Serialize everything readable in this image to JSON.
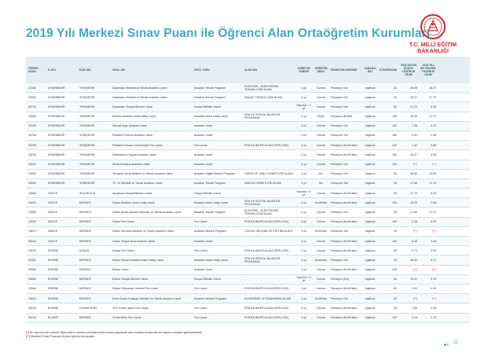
{
  "page_title": "2019 Yılı Merkezi Sınav Puanı ile Öğrenci Alan Ortaöğretim Kurumları",
  "logo": {
    "line1": "T.C. MİLLİ EĞİTİM",
    "line2": "BAKANLIĞI",
    "color": "#d6262b"
  },
  "accent_color": "#3fa9c9",
  "table": {
    "headers": {
      "kod": "TERCİH KODU",
      "il": "İL ADI",
      "ilce": "İLÇE ADI",
      "okul": "OKUL ADI",
      "tur": "OKUL TÜRÜ",
      "alan": "ALAN ADI",
      "sure": "ÖĞRETİM SÜRESİ",
      "sekil": "ÖĞRETİM ŞEKLİ",
      "pans": "PANSİYON DURUMU",
      "dil": "YABANCI DİLİ",
      "kont": "KONTENJANI",
      "y1": "2018 YILI EN DÜŞÜK YÜZDELİK DİLİM",
      "y2": "2018 YILI EN YÜKSEK YÜZDELİK DİLİM"
    },
    "rows": [
      {
        "kod": "23080",
        "il": "DİYARBAKIR",
        "ilce": "YENİŞEHİR",
        "okul": "Diyarbakır Mesleki ve Teknik Anadolu Lisesi",
        "tur": "Anadolu Teknik Programı",
        "alan": "ELEKTRİK - ELEKTRONİK TEKNOLOJİSİ ALANI",
        "sure": "4 yıl",
        "sekil": "Karma",
        "pans": "Pansiyon Yok",
        "dil": "İngilizce",
        "kont": "30",
        "y1": "48.65",
        "y2": "26.27"
      },
      {
        "kod": "23081",
        "il": "DİYARBAKIR",
        "ilce": "YENİŞEHİR",
        "okul": "Diyarbakır Mesleki ve Teknik Anadolu Lisesi",
        "tur": "Anadolu Teknik Programı",
        "alan": "İNŞAAT TEKNOLOJİSİ ALANI",
        "sure": "4 yıl",
        "sekil": "Karma",
        "pans": "Pansiyon Yok",
        "dil": "İngilizce",
        "kont": "30",
        "y1": "48.27",
        "y2": "27.73"
      },
      {
        "kod": "28731",
        "il": "DİYARBAKIR",
        "ilce": "YENİŞEHİR",
        "okul": "Diyarbakır Sosyal Bilimler Lisesi",
        "tur": "Sosyal Bilimler Lisesi",
        "alan": "-",
        "sure": "Hazırlık + 4 yıl",
        "sekil": "Karma",
        "pans": "Pansiyon Yok",
        "dil": "İngilizce",
        "kont": "30",
        "y1": "21.23",
        "y2": "8.39"
      },
      {
        "kod": "24863",
        "il": "DİYARBAKIR",
        "ilce": "YENİŞEHİR",
        "okul": "Merkez Anadolu İmam Hatip Lisesi",
        "tur": "Anadolu İmam Hatip Lisesi",
        "alan": "FEN VE SOSYAL BİLİMLER PROGRAMI",
        "sure": "4 yıl",
        "sekil": "Erkek",
        "pans": "Pansiyon (Erkek)",
        "dil": "İngilizce",
        "kont": "120",
        "y1": "48.35",
        "y2": "11.77"
      },
      {
        "kod": "28189",
        "il": "DİYARBAKIR",
        "ilce": "YENİŞEHİR",
        "okul": "Nevzat Ayaz Anadolu Lisesi",
        "tur": "Anadolu Lisesi",
        "alan": "-",
        "sure": "4 yıl",
        "sekil": "Karma",
        "pans": "Pansiyon Yok",
        "dil": "İngilizce",
        "kont": "180",
        "y1": "7.96",
        "y2": "3.78"
      },
      {
        "kod": "26764",
        "il": "DİYARBAKIR",
        "ilce": "YENİŞEHİR",
        "okul": "Rekabet Kurumu Anadolu Lisesi",
        "tur": "Anadolu Lisesi",
        "alan": "-",
        "sure": "4 yıl",
        "sekil": "Karma",
        "pans": "Pansiyon Yok",
        "dil": "İngilizce",
        "kont": "180",
        "y1": "4.31",
        "y2": "2.48"
      },
      {
        "kod": "23769",
        "il": "DİYARBAKIR",
        "ilce": "YENİŞEHİR",
        "okul": "Rekabet Kurumu Cumhuriyet Fen Lisesi",
        "tur": "Fen Lisesi",
        "alan": "FEN BİLİMLERİ ALANI (FEN LİSE)",
        "sure": "4 yıl",
        "sekil": "Karma",
        "pans": "Pansiyon (Kız/Erkek)",
        "dil": "İngilizce",
        "kont": "120",
        "y1": "1.42",
        "y2": "0.86"
      },
      {
        "kod": "26234",
        "il": "DİYARBAKIR",
        "ilce": "YENİŞEHİR",
        "okul": "Selahaddin-i Eyyubi Anadolu Lisesi",
        "tur": "Anadolu Lisesi",
        "alan": "-",
        "sure": "4 yıl",
        "sekil": "Karma",
        "pans": "Pansiyon (Kız/Erkek)",
        "dil": "İngilizce",
        "kont": "150",
        "y1": "15.47",
        "y2": "6.05"
      },
      {
        "kod": "26642",
        "il": "DİYARBAKIR",
        "ilce": "YENİŞEHİR",
        "okul": "Sezai Karakoç Anadolu Lisesi",
        "tur": "Anadolu Lisesi",
        "alan": "-",
        "sure": "4 yıl",
        "sekil": "Karma",
        "pans": "Pansiyon Yok",
        "dil": "İngilizce",
        "kont": "150",
        "y1": "(**)",
        "y2": "(**)"
      },
      {
        "kod": "23992",
        "il": "DİYARBAKIR",
        "ilce": "YENİŞEHİR",
        "okul": "Yenişehir Dicle Mesleki ve Teknik Anadolu Lisesi",
        "tur": "Anadolu Sağlık Meslek Programı",
        "alan": "HASTA VE YAŞLI HİZMETLERİ ALANI",
        "sure": "4 yıl",
        "sekil": "Kız",
        "pans": "Pansiyon Yok",
        "dil": "İngilizce",
        "kont": "30",
        "y1": "46.89",
        "y2": "19.68"
      },
      {
        "kod": "23993",
        "il": "DİYARBAKIR",
        "ilce": "YENİŞEHİR",
        "okul": "75. Yıl Mesleki ve Teknik Anadolu Lisesi",
        "tur": "Anadolu Teknik Programı",
        "alan": "SAĞLIK HİZMETLERİ ALANI",
        "sure": "4 yıl",
        "sekil": "Kız",
        "pans": "Pansiyon Yok",
        "dil": "İngilizce",
        "kont": "30",
        "y1": "17.68",
        "y2": "11.70"
      },
      {
        "kod": "23563",
        "il": "DÜZCE",
        "ilce": "AKÇAKOCA",
        "okul": "Akçakoca Sosyal Bilimler Lisesi",
        "tur": "Sosyal Bilimler Lisesi",
        "alan": "-",
        "sure": "Hazırlık + 4 yıl",
        "sekil": "Karma",
        "pans": "Pansiyon (Kız/Erkek)",
        "dil": "İngilizce",
        "kont": "60",
        "y1": "21.70",
        "y2": "8.28"
      },
      {
        "kod": "24491",
        "il": "DÜZCE",
        "ilce": "MERKEZ",
        "okul": "Düzce Anadolu İmam Hatip Lisesi",
        "tur": "Anadolu İmam Hatip Lisesi",
        "alan": "FEN VE SOSYAL BİLİMLER PROGRAMI",
        "sure": "4 yıl",
        "sekil": "Kız/Erkek",
        "pans": "Pansiyon (Kız/Erkek)",
        "dil": "İngilizce",
        "kont": "120",
        "y1": "16.00",
        "y2": "7.65"
      },
      {
        "kod": "23882",
        "il": "DÜZCE",
        "ilce": "MERKEZ",
        "okul": "Düzce Borsa İstanbul Mesleki ve Teknik Anadolu Lisesi",
        "tur": "Anadolu Teknik Programı",
        "alan": "ELEKTRİK - ELEKTRONİK TEKNOLOJİSİ ALANI",
        "sure": "4 yıl",
        "sekil": "Karma",
        "pans": "Pansiyon Yok",
        "dil": "İngilizce",
        "kont": "30",
        "y1": "21.80",
        "y2": "11.71"
      },
      {
        "kod": "23525",
        "il": "DÜZCE",
        "ilce": "MERKEZ",
        "okul": "Düzce Fen Lisesi",
        "tur": "Fen Lisesi",
        "alan": "FEN BİLİMLERİ ALANI (FEN LİSE)",
        "sure": "4 yıl",
        "sekil": "Karma",
        "pans": "Pansiyon (Kız/Erkek)",
        "dil": "İngilizce",
        "kont": "150",
        "y1": "0.38",
        "y2": "0.09"
      },
      {
        "kod": "23674",
        "il": "DÜZCE",
        "ilce": "MERKEZ",
        "okul": "Düzce Mevlana Mesleki ve Teknik Anadolu Lisesi",
        "tur": "Anadolu Meslek Programı",
        "alan": "ÇOCUK GELİŞİMİ VE EĞİTİMİ ALANI",
        "sure": "4 yıl",
        "sekil": "Kız/Erkek",
        "pans": "Pansiyon Yok",
        "dil": "İngilizce",
        "kont": "30",
        "y1": "(**)",
        "y2": "(**)"
      },
      {
        "kod": "28214",
        "il": "DÜZCE",
        "ilce": "MERKEZ",
        "okul": "Düzce Turgut Özal Anadolu Lisesi",
        "tur": "Anadolu Lisesi",
        "alan": "-",
        "sure": "4 yıl",
        "sekil": "Karma",
        "pans": "Pansiyon (Kız/Erkek)",
        "dil": "İngilizce",
        "kont": "150",
        "y1": "8.45",
        "y2": "3.48"
      },
      {
        "kod": "28224",
        "il": "EDİRNE",
        "ilce": "KEŞAN",
        "okul": "Keşan Fen Lisesi",
        "tur": "Fen Lisesi",
        "alan": "FEN BİLİMLERİ ALANI (FEN LİSE)",
        "sure": "4 yıl",
        "sekil": "Karma",
        "pans": "Pansiyon (Kız/Erkek)",
        "dil": "İngilizce",
        "kont": "60",
        "y1": "6.74",
        "y2": "0.92"
      },
      {
        "kod": "24481",
        "il": "EDİRNE",
        "ilce": "MERKEZ",
        "okul": "Edirne Remzi Anadolu İmam Hatip Lisesi",
        "tur": "Anadolu İmam Hatip Lisesi",
        "alan": "FEN VE SOSYAL BİLİMLER PROGRAMI",
        "sure": "4 yıl",
        "sekil": "Kız/Erkek",
        "pans": "Pansiyon Yok",
        "dil": "İngilizce",
        "kont": "30",
        "y1": "48.51",
        "y2": "8.72"
      },
      {
        "kod": "26985",
        "il": "EDİRNE",
        "ilce": "MERKEZ",
        "okul": "Edirne Lisesi",
        "tur": "Anadolu Lisesi",
        "alan": "-",
        "sure": "4 yıl",
        "sekil": "Karma",
        "pans": "Pansiyon (Kız/Erkek)",
        "dil": "İngilizce",
        "kont": "325",
        "y1": "(**)",
        "y2": "(**)"
      },
      {
        "kod": "23659",
        "il": "EDİRNE",
        "ilce": "MERKEZ",
        "okul": "Edirne Sosyal Bilimler Lisesi",
        "tur": "Sosyal Bilimler Lisesi",
        "alan": "-",
        "sure": "Hazırlık + 4 yıl",
        "sekil": "Karma",
        "pans": "Pansiyon (Kız)",
        "dil": "İngilizce",
        "kont": "60",
        "y1": "15.01",
        "y2": "5.76"
      },
      {
        "kod": "23564",
        "il": "EDİRNE",
        "ilce": "MERKEZ",
        "okul": "Edirne Süleyman Demirel Fen Lisesi",
        "tur": "Fen Lisesi",
        "alan": "FEN BİLİMLERİ ALANI (FEN LİSE)",
        "sure": "4 yıl",
        "sekil": "Karma",
        "pans": "Pansiyon (Kız/Erkek)",
        "dil": "İngilizce",
        "kont": "60",
        "y1": "3.64",
        "y2": "0.44"
      },
      {
        "kod": "23624",
        "il": "EDİRNE",
        "ilce": "MERKEZ",
        "okul": "Emel-Özgür Kulaçayı Mesleki ve Teknik Anadolu Lisesi",
        "tur": "Anadolu Meslek Programı",
        "alan": "MUHASEBE VE FİNANSMAN ALANI",
        "sure": "4 yıl",
        "sekil": "Kız/Erkek",
        "pans": "Pansiyon Yok",
        "dil": "İngilizce",
        "kont": "30",
        "y1": "(**)",
        "y2": "(**)"
      },
      {
        "kod": "28228",
        "il": "EDİRNE",
        "ilce": "UZUNKÖPRÜ",
        "okul": "TEV Orhan Şahin Fen Lisesi",
        "tur": "Fen Lisesi",
        "alan": "FEN BİLİMLERİ ALANI (FEN LİSE)",
        "sure": "4 yıl",
        "sekil": "Karma",
        "pans": "Pansiyon (Kız/Erkek)",
        "dil": "İngilizce",
        "kont": "30",
        "y1": "7.69",
        "y2": "2.48"
      },
      {
        "kod": "28234",
        "il": "ELAZIĞ",
        "ilce": "MERKEZ",
        "okul": "Cemil Meriç Fen Lisesi",
        "tur": "Fen Lisesi",
        "alan": "FEN BİLİMLERİ ALANI (FEN LİSE)",
        "sure": "4 yıl",
        "sekil": "Karma",
        "pans": "Pansiyon (Kız/Erkek)",
        "dil": "İngilizce",
        "kont": "120",
        "y1": "3.14",
        "y2": "1.72"
      }
    ]
  },
  "notes": {
    "note1_mark": "(*)",
    "note1_text": "Bu alana tercih edecek öğrencilerin merkezi yerleştirmeden sonra yapılacak olan mülakat sınavında da başarılı olmaları gerekmektedir.",
    "note2_mark": "(**)",
    "note2_text": "Merkezi Sınav Puanıyla ilk kez öğrenci alınacaktır."
  },
  "page_number": "22"
}
